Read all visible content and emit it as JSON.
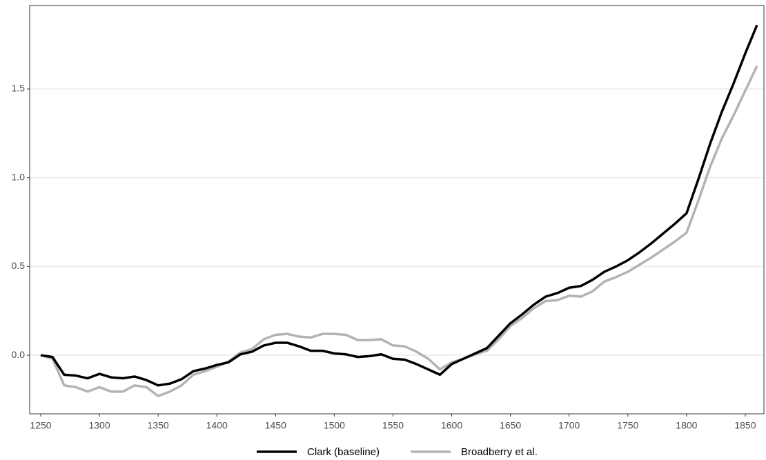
{
  "chart_data": {
    "type": "line",
    "x": [
      1250,
      1260,
      1270,
      1280,
      1290,
      1300,
      1310,
      1320,
      1330,
      1340,
      1350,
      1360,
      1370,
      1380,
      1390,
      1400,
      1410,
      1420,
      1430,
      1440,
      1450,
      1460,
      1470,
      1480,
      1490,
      1500,
      1510,
      1520,
      1530,
      1540,
      1550,
      1560,
      1570,
      1580,
      1590,
      1600,
      1610,
      1620,
      1630,
      1640,
      1650,
      1660,
      1670,
      1680,
      1690,
      1700,
      1710,
      1720,
      1730,
      1740,
      1750,
      1760,
      1770,
      1780,
      1790,
      1800,
      1810,
      1820,
      1830,
      1840,
      1850,
      1860
    ],
    "series": [
      {
        "name": "Clark (baseline)",
        "color": "#000000",
        "values": [
          0,
          -0.01,
          -0.11,
          -0.115,
          -0.13,
          -0.105,
          -0.125,
          -0.13,
          -0.12,
          -0.14,
          -0.17,
          -0.16,
          -0.135,
          -0.09,
          -0.075,
          -0.055,
          -0.04,
          0.005,
          0.02,
          0.055,
          0.07,
          0.07,
          0.05,
          0.025,
          0.025,
          0.01,
          0.005,
          -0.01,
          -0.005,
          0.005,
          -0.02,
          -0.025,
          -0.05,
          -0.08,
          -0.11,
          -0.05,
          -0.02,
          0.01,
          0.04,
          0.11,
          0.18,
          0.23,
          0.285,
          0.33,
          0.35,
          0.38,
          0.39,
          0.425,
          0.47,
          0.5,
          0.535,
          0.58,
          0.63,
          0.685,
          0.74,
          0.8,
          0.99,
          1.19,
          1.37,
          1.53,
          1.7,
          1.86
        ]
      },
      {
        "name": "Broadberry et al.",
        "color": "#b3b3b3",
        "values": [
          0,
          -0.02,
          -0.17,
          -0.18,
          -0.205,
          -0.18,
          -0.205,
          -0.205,
          -0.17,
          -0.18,
          -0.23,
          -0.205,
          -0.17,
          -0.11,
          -0.09,
          -0.065,
          -0.035,
          0.015,
          0.035,
          0.09,
          0.115,
          0.12,
          0.105,
          0.1,
          0.12,
          0.12,
          0.115,
          0.085,
          0.085,
          0.09,
          0.055,
          0.05,
          0.02,
          -0.02,
          -0.08,
          -0.04,
          -0.02,
          0.005,
          0.025,
          0.09,
          0.165,
          0.21,
          0.265,
          0.305,
          0.31,
          0.335,
          0.33,
          0.36,
          0.415,
          0.44,
          0.47,
          0.51,
          0.55,
          0.595,
          0.64,
          0.69,
          0.87,
          1.06,
          1.22,
          1.35,
          1.49,
          1.63
        ]
      }
    ],
    "xlim": [
      1240.6,
      1865.9
    ],
    "ylim": [
      -0.33,
      1.97
    ],
    "xticks": [
      1250,
      1300,
      1350,
      1400,
      1450,
      1500,
      1550,
      1600,
      1650,
      1700,
      1750,
      1800,
      1850
    ],
    "yticks": [
      {
        "value": 0,
        "label": "0.0"
      },
      0.5,
      {
        "value": 1,
        "label": "1.0"
      },
      1.5
    ],
    "grid": true,
    "legend": "bottom"
  }
}
